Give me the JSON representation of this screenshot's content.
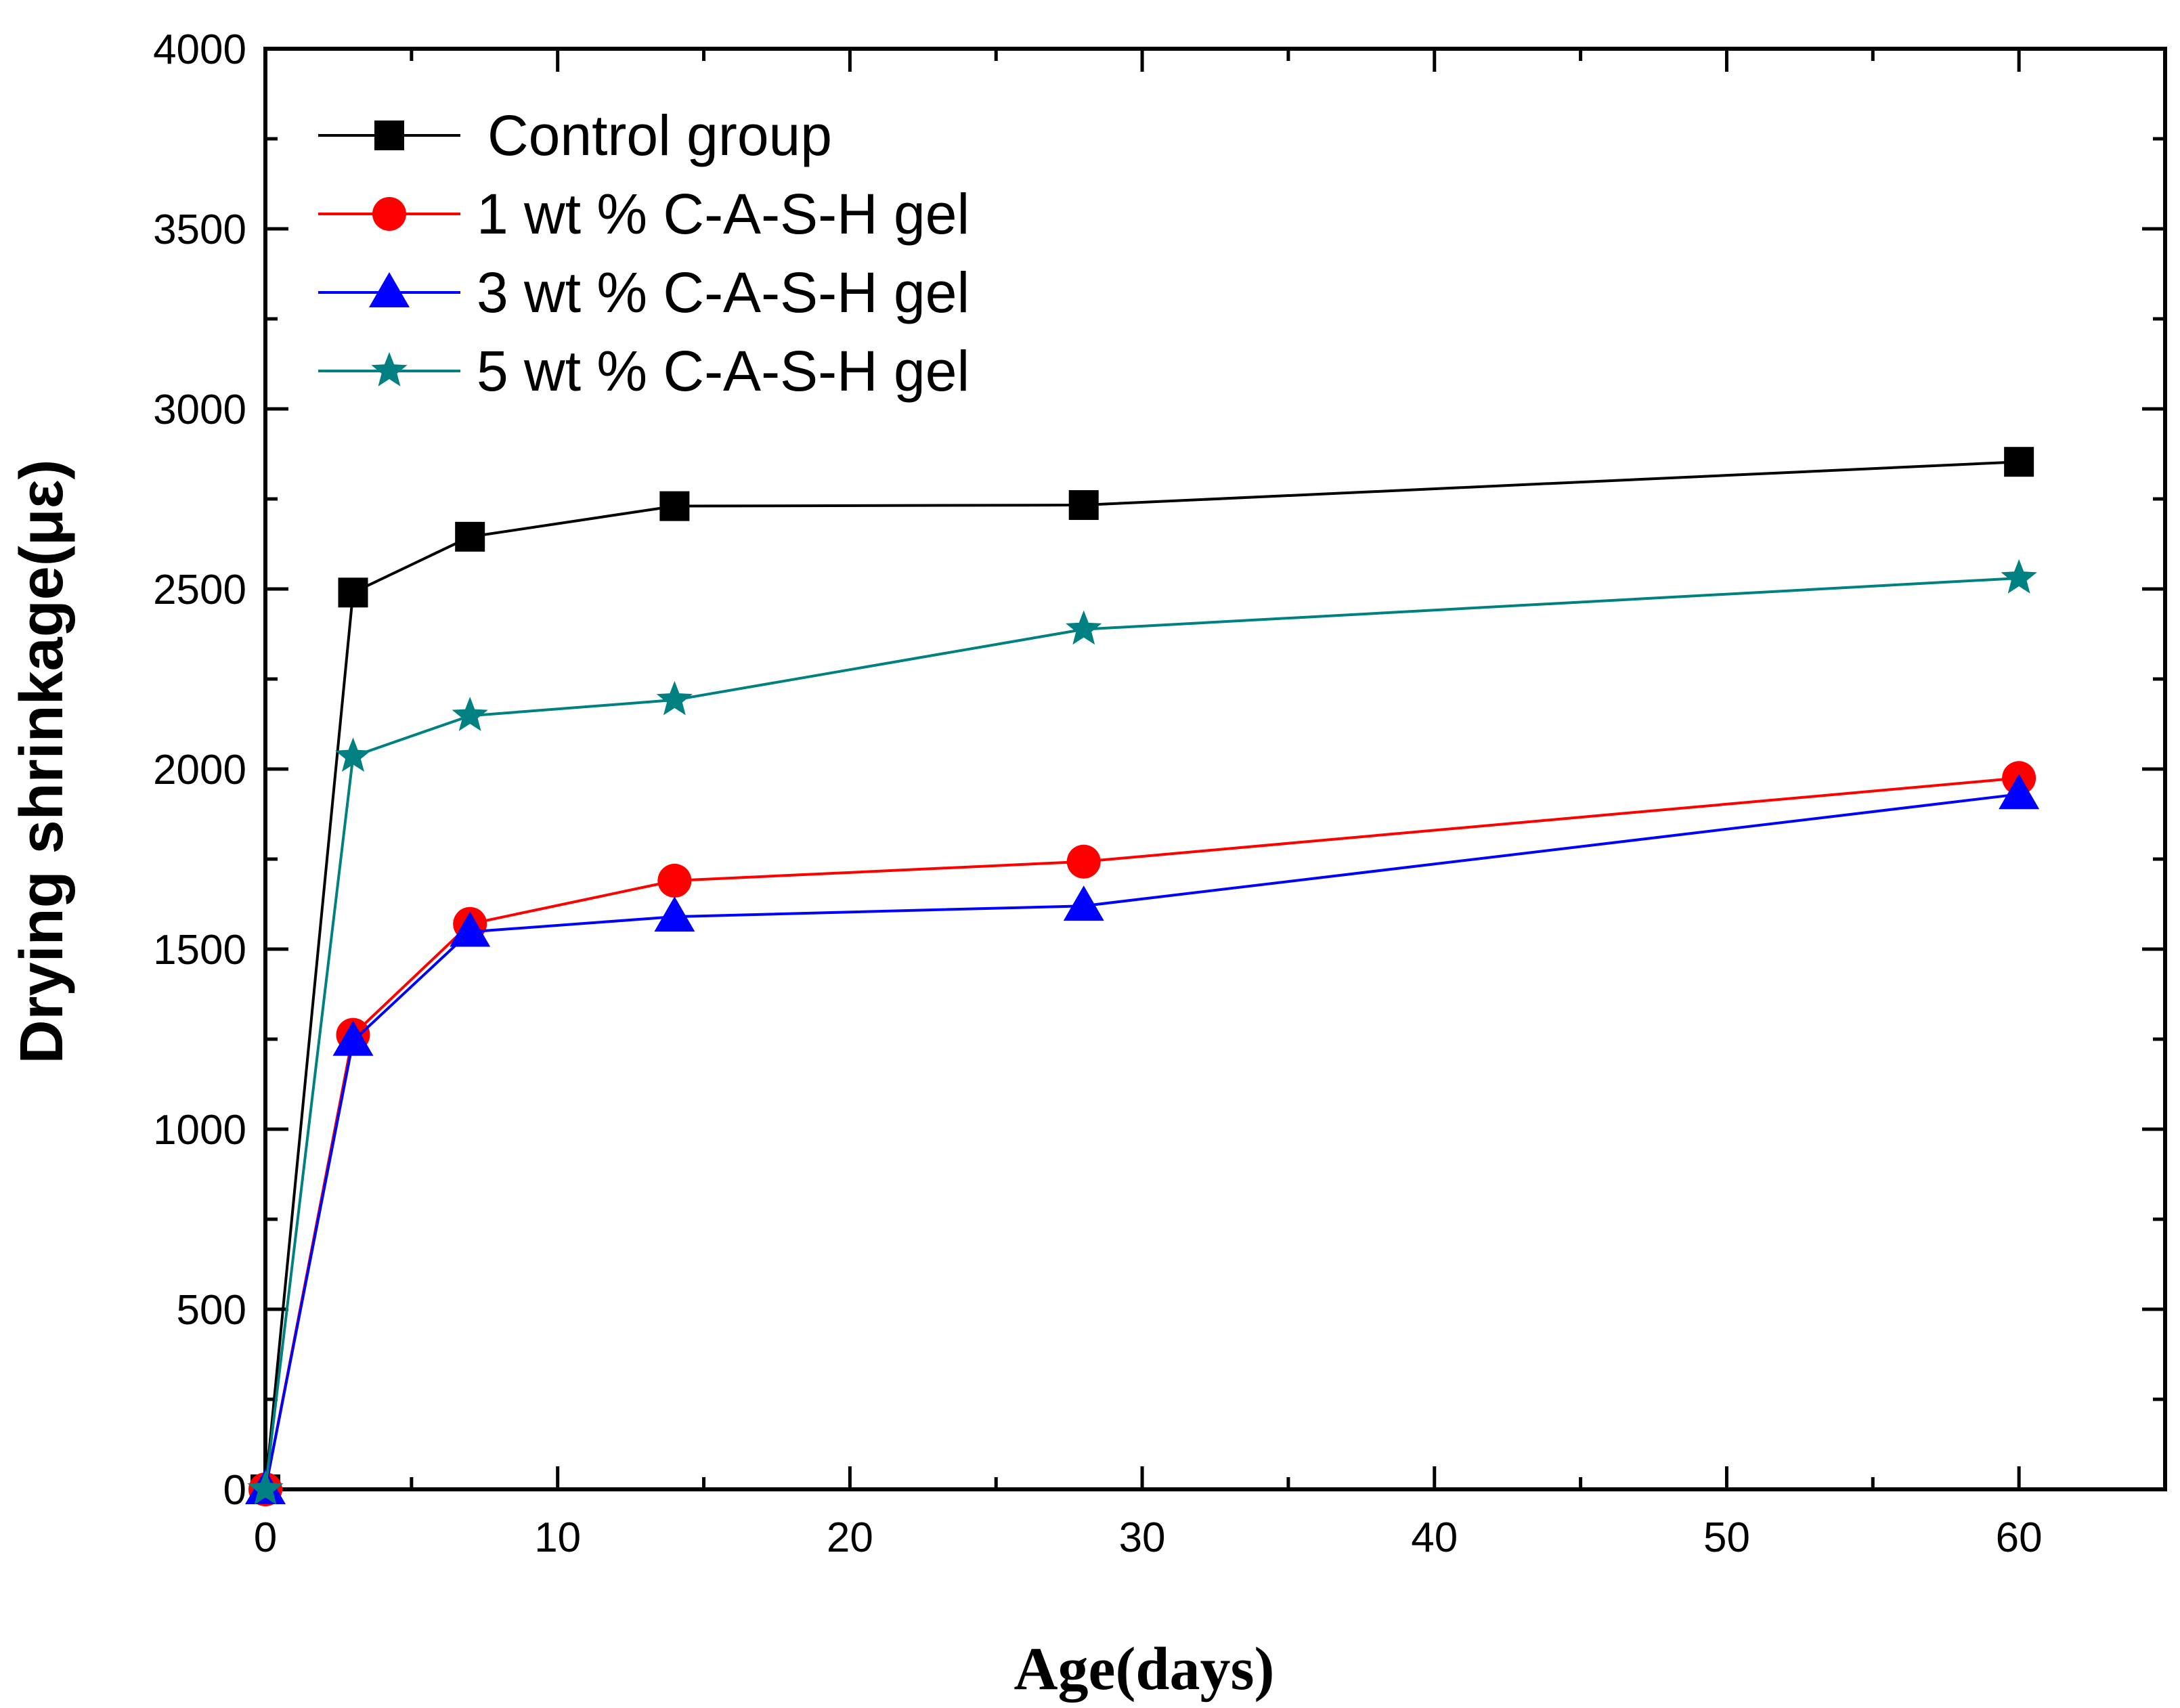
{
  "chart_data": {
    "type": "line",
    "title": "",
    "xlabel": "Age(days)",
    "ylabel": "Drying shrinkage(με)",
    "xlim": [
      0,
      65
    ],
    "ylim": [
      0,
      4000
    ],
    "x_ticks": [
      0,
      10,
      20,
      30,
      40,
      50,
      60
    ],
    "y_ticks": [
      0,
      500,
      1000,
      1500,
      2000,
      2500,
      3000,
      3500,
      4000
    ],
    "legend_position": "top-left",
    "grid": false,
    "series": [
      {
        "name": "Control group",
        "color": "#000000",
        "marker": "square",
        "x": [
          0,
          3,
          7,
          14,
          28,
          60
        ],
        "values": [
          0,
          2490,
          2645,
          2730,
          2733,
          2853
        ]
      },
      {
        "name": "1 wt % C-A-S-H gel",
        "color": "#ff0000",
        "marker": "circle",
        "x": [
          0,
          3,
          7,
          14,
          28,
          60
        ],
        "values": [
          0,
          1262,
          1570,
          1690,
          1743,
          1975
        ]
      },
      {
        "name": "3 wt % C-A-S-H gel",
        "color": "#0000ff",
        "marker": "triangle",
        "x": [
          0,
          3,
          7,
          14,
          28,
          60
        ],
        "values": [
          0,
          1245,
          1548,
          1590,
          1620,
          1930
        ]
      },
      {
        "name": "5 wt % C-A-S-H gel",
        "color": "#008080",
        "marker": "star",
        "x": [
          0,
          3,
          7,
          14,
          28,
          60
        ],
        "values": [
          0,
          2035,
          2148,
          2192,
          2388,
          2530
        ]
      }
    ]
  }
}
